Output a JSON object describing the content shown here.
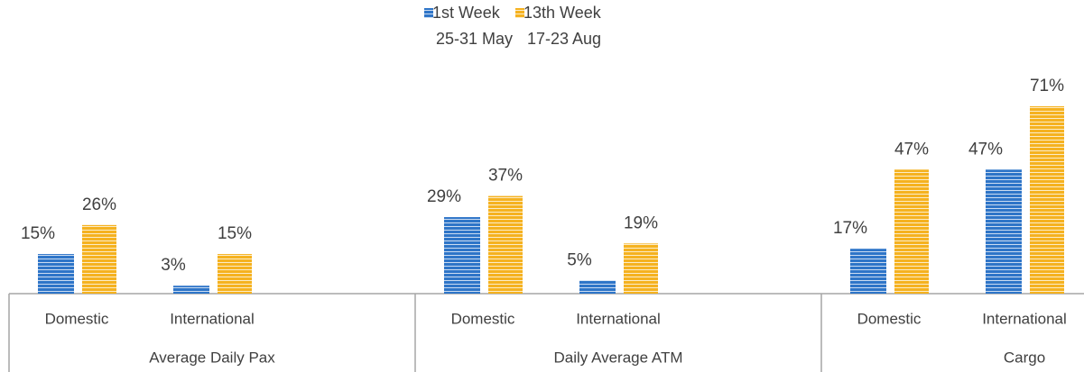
{
  "chart_data": {
    "type": "bar",
    "legend": "top",
    "groups": [
      {
        "name": "Average Daily Pax",
        "categories": [
          "Domestic",
          "International"
        ]
      },
      {
        "name": "Daily Average ATM",
        "categories": [
          "Domestic",
          "International"
        ]
      },
      {
        "name": "Cargo",
        "categories": [
          "Domestic",
          "International"
        ]
      }
    ],
    "series": [
      {
        "name": "1st Week\n25-31 May",
        "color": "#2e75c8",
        "values": [
          15,
          3,
          29,
          5,
          17,
          47
        ],
        "value_labels": [
          "15%",
          "3%",
          "29%",
          "5%",
          "17%",
          "47%"
        ]
      },
      {
        "name": "13th Week\n17-23 Aug",
        "color": "#f5b220",
        "values": [
          26,
          15,
          37,
          19,
          47,
          71
        ],
        "value_labels": [
          "26%",
          "15%",
          "37%",
          "19%",
          "47%",
          "71%"
        ]
      }
    ]
  }
}
